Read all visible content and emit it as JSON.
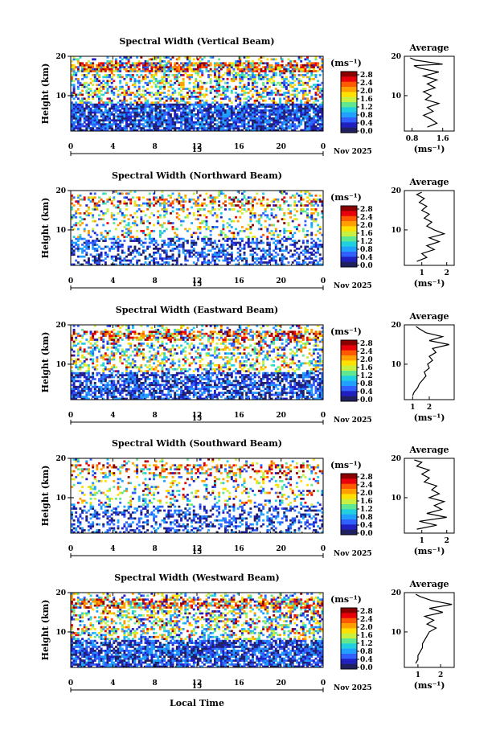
{
  "figure": {
    "xlabel": "Local Time",
    "date_label": "Nov 2025"
  },
  "colorbar": {
    "unit": "(ms⁻¹)",
    "ticks": [
      "2.8",
      "2.4",
      "2.0",
      "1.6",
      "1.2",
      "0.8",
      "0.4",
      "0.0"
    ],
    "colors": [
      "#8b0000",
      "#e8000b",
      "#ff5a00",
      "#ffa000",
      "#ffe000",
      "#c8f040",
      "#60e890",
      "#20d0e0",
      "#20a0ff",
      "#3060ff",
      "#2020c0",
      "#202060"
    ]
  },
  "chart_data": [
    {
      "type": "heatmap",
      "title": "Spectral Width (Vertical Beam)",
      "ylabel": "Height (km)",
      "xlabel": "Local Time",
      "xlim": [
        0,
        24
      ],
      "ylim": [
        1,
        20
      ],
      "x_ticks": [
        "0",
        "4",
        "8",
        "12",
        "16",
        "20",
        "0"
      ],
      "day_label": "15",
      "date_label": "Nov 2025",
      "y_ticks": [
        "20",
        "10"
      ],
      "avg_title": "Average",
      "avg_xlabel": "(ms⁻¹)",
      "avg_x_ticks": [
        "0.8",
        "1.6"
      ],
      "avg_xlim": [
        0.6,
        1.9
      ],
      "avg_profile": [
        [
          1.2,
          2
        ],
        [
          1.45,
          3
        ],
        [
          1.3,
          4
        ],
        [
          1.1,
          5
        ],
        [
          1.35,
          6
        ],
        [
          1.2,
          7
        ],
        [
          1.5,
          8
        ],
        [
          1.15,
          9
        ],
        [
          1.3,
          10
        ],
        [
          1.1,
          11
        ],
        [
          1.4,
          12
        ],
        [
          1.2,
          13
        ],
        [
          1.45,
          14
        ],
        [
          1.1,
          15
        ],
        [
          1.5,
          16
        ],
        [
          1.0,
          17
        ],
        [
          0.85,
          17.6
        ],
        [
          1.6,
          18
        ],
        [
          0.9,
          19
        ],
        [
          0.75,
          19.6
        ]
      ],
      "coverage": 0.85,
      "seed": 11
    },
    {
      "type": "heatmap",
      "title": "Spectral Width (Northward Beam)",
      "ylabel": "Height (km)",
      "xlabel": "Local Time",
      "xlim": [
        0,
        24
      ],
      "ylim": [
        1,
        20
      ],
      "x_ticks": [
        "0",
        "4",
        "8",
        "12",
        "16",
        "20",
        "0"
      ],
      "day_label": "15",
      "date_label": "Nov 2025",
      "y_ticks": [
        "20",
        "10"
      ],
      "avg_title": "Average",
      "avg_xlabel": "(ms⁻¹)",
      "avg_x_ticks": [
        "1",
        "2"
      ],
      "avg_xlim": [
        0.3,
        2.3
      ],
      "avg_profile": [
        [
          0.8,
          2
        ],
        [
          1.2,
          3
        ],
        [
          1.0,
          4
        ],
        [
          1.5,
          5
        ],
        [
          1.2,
          6
        ],
        [
          1.7,
          7
        ],
        [
          1.3,
          8
        ],
        [
          1.9,
          9
        ],
        [
          1.5,
          10
        ],
        [
          1.2,
          11
        ],
        [
          1.4,
          12
        ],
        [
          1.1,
          13
        ],
        [
          1.3,
          14
        ],
        [
          1.0,
          15
        ],
        [
          1.2,
          16
        ],
        [
          0.9,
          17
        ],
        [
          1.1,
          18
        ],
        [
          0.8,
          19
        ],
        [
          1.0,
          19.6
        ]
      ],
      "coverage": 0.45,
      "seed": 23
    },
    {
      "type": "heatmap",
      "title": "Spectral Width (Eastward Beam)",
      "ylabel": "Height (km)",
      "xlabel": "Local Time",
      "xlim": [
        0,
        24
      ],
      "ylim": [
        1,
        20
      ],
      "x_ticks": [
        "0",
        "4",
        "8",
        "12",
        "16",
        "20",
        "0"
      ],
      "day_label": "15",
      "date_label": "Nov 2025",
      "y_ticks": [
        "20",
        "10"
      ],
      "avg_title": "Average",
      "avg_xlabel": "(ms⁻¹)",
      "avg_x_ticks": [
        "1",
        "2"
      ],
      "avg_xlim": [
        0.5,
        3.5
      ],
      "avg_profile": [
        [
          1.0,
          2
        ],
        [
          1.1,
          3
        ],
        [
          1.3,
          4
        ],
        [
          1.4,
          5
        ],
        [
          1.6,
          6
        ],
        [
          1.8,
          7
        ],
        [
          1.7,
          8
        ],
        [
          2.0,
          9
        ],
        [
          1.9,
          10
        ],
        [
          2.2,
          11
        ],
        [
          2.0,
          12
        ],
        [
          2.4,
          13
        ],
        [
          2.2,
          14
        ],
        [
          3.2,
          15
        ],
        [
          2.0,
          16
        ],
        [
          2.8,
          17
        ],
        [
          1.8,
          18
        ],
        [
          1.4,
          19
        ],
        [
          1.2,
          19.6
        ]
      ],
      "coverage": 0.7,
      "seed": 37
    },
    {
      "type": "heatmap",
      "title": "Spectral Width (Southward Beam)",
      "ylabel": "Height (km)",
      "xlabel": "Local Time",
      "xlim": [
        0,
        24
      ],
      "ylim": [
        1,
        20
      ],
      "x_ticks": [
        "0",
        "4",
        "8",
        "12",
        "16",
        "20",
        "0"
      ],
      "day_label": "15",
      "date_label": "Nov 2025",
      "y_ticks": [
        "20",
        "10"
      ],
      "avg_title": "Average",
      "avg_xlabel": "(ms⁻¹)",
      "avg_x_ticks": [
        "1",
        "2"
      ],
      "avg_xlim": [
        0.3,
        2.3
      ],
      "avg_profile": [
        [
          0.8,
          2
        ],
        [
          1.6,
          3
        ],
        [
          0.9,
          4
        ],
        [
          2.0,
          5
        ],
        [
          1.2,
          6
        ],
        [
          1.8,
          7
        ],
        [
          1.5,
          8
        ],
        [
          1.9,
          9
        ],
        [
          1.3,
          10
        ],
        [
          1.7,
          11
        ],
        [
          1.4,
          12
        ],
        [
          1.6,
          13
        ],
        [
          1.1,
          14
        ],
        [
          1.3,
          15
        ],
        [
          1.0,
          16
        ],
        [
          1.3,
          17
        ],
        [
          0.8,
          18
        ],
        [
          1.0,
          19
        ],
        [
          0.7,
          19.6
        ]
      ],
      "coverage": 0.4,
      "seed": 53
    },
    {
      "type": "heatmap",
      "title": "Spectral Width (Westward Beam)",
      "ylabel": "Height (km)",
      "xlabel": "Local Time",
      "xlim": [
        0,
        24
      ],
      "ylim": [
        1,
        20
      ],
      "x_ticks": [
        "0",
        "4",
        "8",
        "12",
        "16",
        "20",
        "0"
      ],
      "day_label": "15",
      "date_label": "Nov 2025",
      "y_ticks": [
        "20",
        "10"
      ],
      "avg_title": "Average",
      "avg_xlabel": "(ms⁻¹)",
      "avg_x_ticks": [
        "1",
        "2"
      ],
      "avg_xlim": [
        0.4,
        2.6
      ],
      "avg_profile": [
        [
          0.9,
          2
        ],
        [
          1.0,
          3
        ],
        [
          1.0,
          4
        ],
        [
          1.1,
          5
        ],
        [
          1.2,
          6
        ],
        [
          1.2,
          7
        ],
        [
          1.3,
          8
        ],
        [
          1.4,
          9
        ],
        [
          1.5,
          10
        ],
        [
          1.8,
          11
        ],
        [
          1.4,
          12
        ],
        [
          1.7,
          13
        ],
        [
          1.3,
          14
        ],
        [
          2.1,
          15
        ],
        [
          1.5,
          16
        ],
        [
          2.5,
          17
        ],
        [
          1.6,
          18
        ],
        [
          1.1,
          19
        ],
        [
          0.9,
          19.6
        ]
      ],
      "coverage": 0.8,
      "seed": 71
    }
  ]
}
